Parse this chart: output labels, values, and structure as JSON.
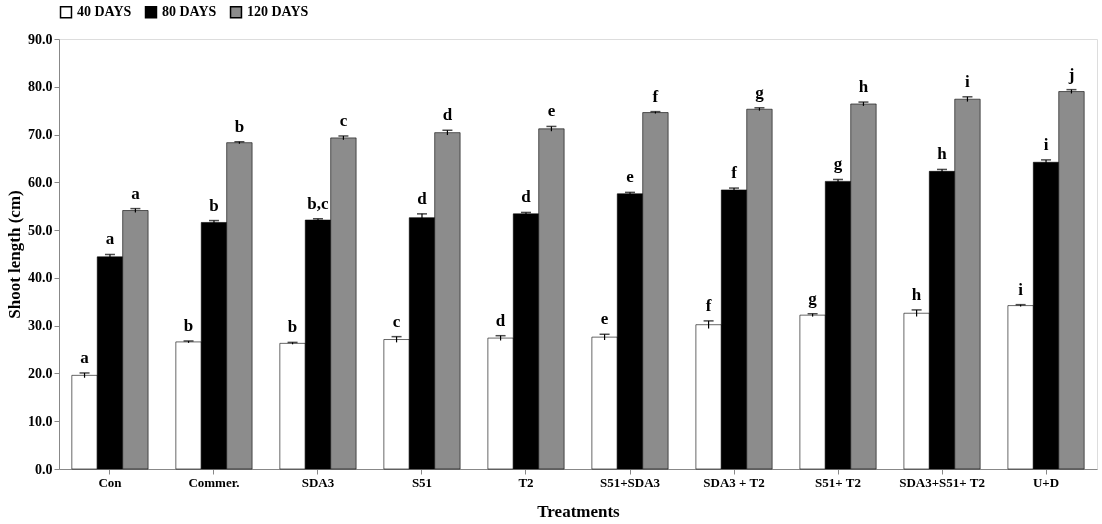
{
  "chart_data": {
    "type": "bar",
    "xlabel": "Treatments",
    "ylabel": "Shoot length (cm)",
    "categories": [
      "Con",
      "Commer.",
      "SDA3",
      "S51",
      "T2",
      "S51+SDA3",
      "SDA3 + T2",
      "S51+ T2",
      "SDA3+S51+ T2",
      "U+D"
    ],
    "series": [
      {
        "name": "40 DAYS",
        "color": "#ffffff",
        "values": [
          19.6,
          26.6,
          26.3,
          27.1,
          27.4,
          27.6,
          30.2,
          32.2,
          32.6,
          34.2
        ],
        "errors": [
          0.5,
          0.2,
          0.2,
          0.6,
          0.5,
          0.6,
          0.8,
          0.3,
          0.7,
          0.2
        ],
        "value_labels": [
          "a",
          "b",
          "b",
          "c",
          "d",
          "e",
          "f",
          "g",
          "h",
          "i"
        ]
      },
      {
        "name": "80 DAYS",
        "color": "#000000",
        "values": [
          44.4,
          51.6,
          52.1,
          52.6,
          53.4,
          57.6,
          58.4,
          60.2,
          62.3,
          64.2
        ],
        "errors": [
          0.5,
          0.4,
          0.3,
          0.8,
          0.3,
          0.3,
          0.4,
          0.4,
          0.4,
          0.5
        ],
        "value_labels": [
          "a",
          "b",
          "b,c",
          "d",
          "d",
          "e",
          "f",
          "g",
          "h",
          "i"
        ]
      },
      {
        "name": "120 DAYS",
        "color": "#8c8c8c",
        "values": [
          54.1,
          68.3,
          69.3,
          70.4,
          71.2,
          74.6,
          75.3,
          76.4,
          77.4,
          79.0
        ],
        "errors": [
          0.4,
          0.2,
          0.4,
          0.5,
          0.5,
          0.2,
          0.3,
          0.4,
          0.5,
          0.4
        ],
        "value_labels": [
          "a",
          "b",
          "c",
          "d",
          "e",
          "f",
          "g",
          "h",
          "i",
          "j"
        ]
      }
    ],
    "ylim": [
      0,
      90
    ],
    "yticks": [
      {
        "value": 0,
        "label": "0.0"
      },
      {
        "value": 10,
        "label": "10.0"
      },
      {
        "value": 20,
        "label": "20.0"
      },
      {
        "value": 30,
        "label": "30.0"
      },
      {
        "value": 40,
        "label": "40.0"
      },
      {
        "value": 50,
        "label": "50.0"
      },
      {
        "value": 60,
        "label": "60.0"
      },
      {
        "value": 70,
        "label": "70.0"
      },
      {
        "value": 80,
        "label": "80.0"
      },
      {
        "value": 90,
        "label": "90.0"
      }
    ],
    "grid": false,
    "legend": "top"
  }
}
